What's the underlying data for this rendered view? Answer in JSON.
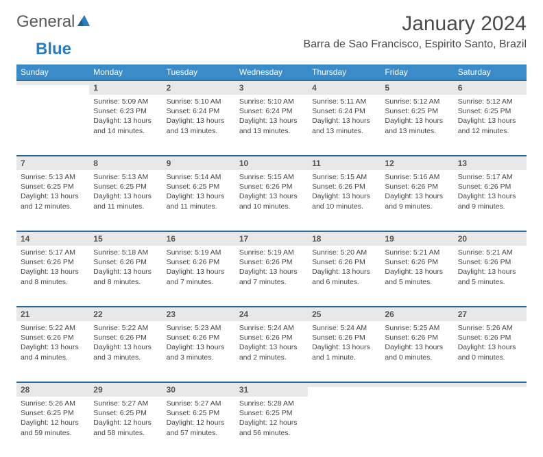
{
  "brand": {
    "general": "General",
    "blue": "Blue"
  },
  "title": "January 2024",
  "location": "Barra de Sao Francisco, Espirito Santo, Brazil",
  "colors": {
    "header_bg": "#3b8bc9",
    "header_text": "#ffffff",
    "daynum_bg": "#e8e8e8",
    "daynum_border": "#2b6ca3",
    "body_text": "#444444",
    "title_text": "#4a4a4a",
    "logo_gray": "#5a5a5a",
    "logo_blue": "#2b7bbf"
  },
  "weekdays": [
    "Sunday",
    "Monday",
    "Tuesday",
    "Wednesday",
    "Thursday",
    "Friday",
    "Saturday"
  ],
  "weeks": [
    [
      {
        "n": "",
        "sr": "",
        "ss": "",
        "dl": ""
      },
      {
        "n": "1",
        "sr": "Sunrise: 5:09 AM",
        "ss": "Sunset: 6:23 PM",
        "dl": "Daylight: 13 hours and 14 minutes."
      },
      {
        "n": "2",
        "sr": "Sunrise: 5:10 AM",
        "ss": "Sunset: 6:24 PM",
        "dl": "Daylight: 13 hours and 13 minutes."
      },
      {
        "n": "3",
        "sr": "Sunrise: 5:10 AM",
        "ss": "Sunset: 6:24 PM",
        "dl": "Daylight: 13 hours and 13 minutes."
      },
      {
        "n": "4",
        "sr": "Sunrise: 5:11 AM",
        "ss": "Sunset: 6:24 PM",
        "dl": "Daylight: 13 hours and 13 minutes."
      },
      {
        "n": "5",
        "sr": "Sunrise: 5:12 AM",
        "ss": "Sunset: 6:25 PM",
        "dl": "Daylight: 13 hours and 13 minutes."
      },
      {
        "n": "6",
        "sr": "Sunrise: 5:12 AM",
        "ss": "Sunset: 6:25 PM",
        "dl": "Daylight: 13 hours and 12 minutes."
      }
    ],
    [
      {
        "n": "7",
        "sr": "Sunrise: 5:13 AM",
        "ss": "Sunset: 6:25 PM",
        "dl": "Daylight: 13 hours and 12 minutes."
      },
      {
        "n": "8",
        "sr": "Sunrise: 5:13 AM",
        "ss": "Sunset: 6:25 PM",
        "dl": "Daylight: 13 hours and 11 minutes."
      },
      {
        "n": "9",
        "sr": "Sunrise: 5:14 AM",
        "ss": "Sunset: 6:25 PM",
        "dl": "Daylight: 13 hours and 11 minutes."
      },
      {
        "n": "10",
        "sr": "Sunrise: 5:15 AM",
        "ss": "Sunset: 6:26 PM",
        "dl": "Daylight: 13 hours and 10 minutes."
      },
      {
        "n": "11",
        "sr": "Sunrise: 5:15 AM",
        "ss": "Sunset: 6:26 PM",
        "dl": "Daylight: 13 hours and 10 minutes."
      },
      {
        "n": "12",
        "sr": "Sunrise: 5:16 AM",
        "ss": "Sunset: 6:26 PM",
        "dl": "Daylight: 13 hours and 9 minutes."
      },
      {
        "n": "13",
        "sr": "Sunrise: 5:17 AM",
        "ss": "Sunset: 6:26 PM",
        "dl": "Daylight: 13 hours and 9 minutes."
      }
    ],
    [
      {
        "n": "14",
        "sr": "Sunrise: 5:17 AM",
        "ss": "Sunset: 6:26 PM",
        "dl": "Daylight: 13 hours and 8 minutes."
      },
      {
        "n": "15",
        "sr": "Sunrise: 5:18 AM",
        "ss": "Sunset: 6:26 PM",
        "dl": "Daylight: 13 hours and 8 minutes."
      },
      {
        "n": "16",
        "sr": "Sunrise: 5:19 AM",
        "ss": "Sunset: 6:26 PM",
        "dl": "Daylight: 13 hours and 7 minutes."
      },
      {
        "n": "17",
        "sr": "Sunrise: 5:19 AM",
        "ss": "Sunset: 6:26 PM",
        "dl": "Daylight: 13 hours and 7 minutes."
      },
      {
        "n": "18",
        "sr": "Sunrise: 5:20 AM",
        "ss": "Sunset: 6:26 PM",
        "dl": "Daylight: 13 hours and 6 minutes."
      },
      {
        "n": "19",
        "sr": "Sunrise: 5:21 AM",
        "ss": "Sunset: 6:26 PM",
        "dl": "Daylight: 13 hours and 5 minutes."
      },
      {
        "n": "20",
        "sr": "Sunrise: 5:21 AM",
        "ss": "Sunset: 6:26 PM",
        "dl": "Daylight: 13 hours and 5 minutes."
      }
    ],
    [
      {
        "n": "21",
        "sr": "Sunrise: 5:22 AM",
        "ss": "Sunset: 6:26 PM",
        "dl": "Daylight: 13 hours and 4 minutes."
      },
      {
        "n": "22",
        "sr": "Sunrise: 5:22 AM",
        "ss": "Sunset: 6:26 PM",
        "dl": "Daylight: 13 hours and 3 minutes."
      },
      {
        "n": "23",
        "sr": "Sunrise: 5:23 AM",
        "ss": "Sunset: 6:26 PM",
        "dl": "Daylight: 13 hours and 3 minutes."
      },
      {
        "n": "24",
        "sr": "Sunrise: 5:24 AM",
        "ss": "Sunset: 6:26 PM",
        "dl": "Daylight: 13 hours and 2 minutes."
      },
      {
        "n": "25",
        "sr": "Sunrise: 5:24 AM",
        "ss": "Sunset: 6:26 PM",
        "dl": "Daylight: 13 hours and 1 minute."
      },
      {
        "n": "26",
        "sr": "Sunrise: 5:25 AM",
        "ss": "Sunset: 6:26 PM",
        "dl": "Daylight: 13 hours and 0 minutes."
      },
      {
        "n": "27",
        "sr": "Sunrise: 5:26 AM",
        "ss": "Sunset: 6:26 PM",
        "dl": "Daylight: 13 hours and 0 minutes."
      }
    ],
    [
      {
        "n": "28",
        "sr": "Sunrise: 5:26 AM",
        "ss": "Sunset: 6:25 PM",
        "dl": "Daylight: 12 hours and 59 minutes."
      },
      {
        "n": "29",
        "sr": "Sunrise: 5:27 AM",
        "ss": "Sunset: 6:25 PM",
        "dl": "Daylight: 12 hours and 58 minutes."
      },
      {
        "n": "30",
        "sr": "Sunrise: 5:27 AM",
        "ss": "Sunset: 6:25 PM",
        "dl": "Daylight: 12 hours and 57 minutes."
      },
      {
        "n": "31",
        "sr": "Sunrise: 5:28 AM",
        "ss": "Sunset: 6:25 PM",
        "dl": "Daylight: 12 hours and 56 minutes."
      },
      {
        "n": "",
        "sr": "",
        "ss": "",
        "dl": ""
      },
      {
        "n": "",
        "sr": "",
        "ss": "",
        "dl": ""
      },
      {
        "n": "",
        "sr": "",
        "ss": "",
        "dl": ""
      }
    ]
  ]
}
